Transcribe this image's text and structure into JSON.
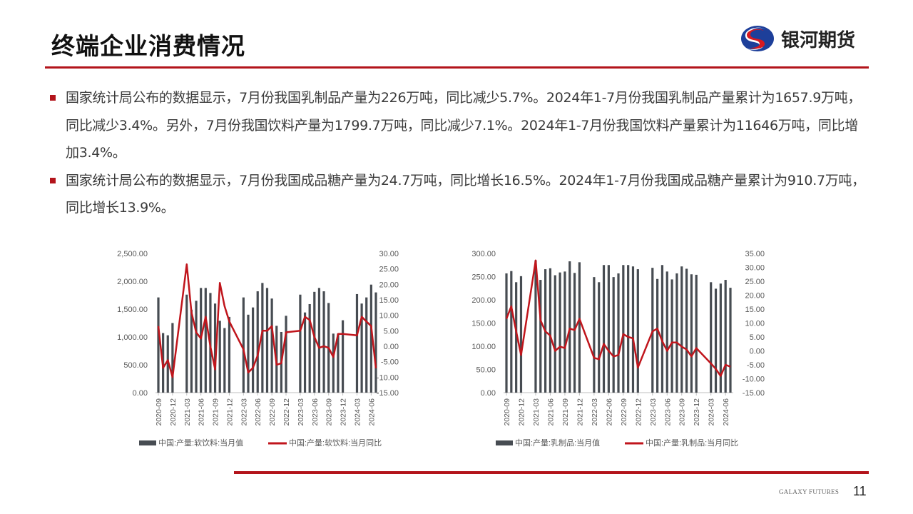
{
  "header": {
    "title": "终端企业消费情况",
    "logo_text": "银河期货"
  },
  "bullets": [
    "国家统计局公布的数据显示，7月份我国乳制品产量为226万吨，同比减少5.7%。2024年1-7月份我国乳制品产量累计为1657.9万吨，同比减少3.4%。另外，7月份我国饮料产量为1799.7万吨，同比减少7.1%。2024年1-7月份我国饮料产量累计为11646万吨，同比增加3.4%。",
    "国家统计局公布的数据显示，7月份我国成品糖产量为24.7万吨，同比增长16.5%。2024年1-7月份我国成品糖产量累计为910.7万吨，同比增长13.9%。"
  ],
  "colors": {
    "accent": "#b3141b",
    "bar": "#474c52",
    "line": "#c0151c"
  },
  "chart_data": [
    {
      "type": "bar+line",
      "months": [
        "2020-09",
        "2020-10",
        "2020-11",
        "2020-12",
        "2021-01",
        "2021-02",
        "2021-03",
        "2021-04",
        "2021-05",
        "2021-06",
        "2021-07",
        "2021-08",
        "2021-09",
        "2021-10",
        "2021-11",
        "2021-12",
        "2022-01",
        "2022-02",
        "2022-03",
        "2022-04",
        "2022-05",
        "2022-06",
        "2022-07",
        "2022-08",
        "2022-09",
        "2022-10",
        "2022-11",
        "2022-12",
        "2023-01",
        "2023-02",
        "2023-03",
        "2023-04",
        "2023-05",
        "2023-06",
        "2023-07",
        "2023-08",
        "2023-09",
        "2023-10",
        "2023-11",
        "2023-12",
        "2024-01",
        "2024-02",
        "2024-03",
        "2024-04",
        "2024-05",
        "2024-06",
        "2024-07"
      ],
      "xticks": [
        "2020-09",
        "2020-12",
        "2021-03",
        "2021-06",
        "2021-09",
        "2021-12",
        "2022-03",
        "2022-06",
        "2022-09",
        "2022-12",
        "2023-03",
        "2023-06",
        "2023-09",
        "2023-12",
        "2024-03",
        "2024-06"
      ],
      "series": [
        {
          "name": "中国:产量:软饮料:当月值",
          "axis": "left",
          "kind": "bar",
          "values": [
            1710,
            1070,
            1030,
            1250,
            null,
            null,
            1760,
            1490,
            1650,
            1880,
            1880,
            1790,
            1600,
            1290,
            1160,
            1360,
            null,
            null,
            1710,
            1400,
            1530,
            1820,
            1970,
            1880,
            1690,
            1200,
            1090,
            1380,
            null,
            null,
            1760,
            1440,
            1590,
            1810,
            1880,
            1820,
            1610,
            1060,
            1060,
            1300,
            null,
            null,
            1770,
            1600,
            1710,
            1940,
            1800
          ]
        },
        {
          "name": "中国:产量:软饮料:当月同比",
          "axis": "right",
          "kind": "line",
          "values": [
            6.5,
            -7,
            -4.5,
            -10,
            null,
            null,
            26.5,
            11,
            4.5,
            2.5,
            9.5,
            0,
            -7.5,
            20.5,
            13,
            8,
            null,
            null,
            -1,
            -8.5,
            -7,
            -3,
            5,
            5,
            6.5,
            -6,
            -5.5,
            4.5,
            null,
            null,
            5,
            9.5,
            8.5,
            3,
            -0.5,
            0,
            -0.5,
            -3.5,
            4,
            4,
            null,
            null,
            3.5,
            9.5,
            8,
            6.5,
            -7.1
          ]
        }
      ],
      "yleft": {
        "range": [
          0,
          2500
        ],
        "ticks": [
          "0.00",
          "500.00",
          "1,000.00",
          "1,500.00",
          "2,000.00",
          "2,500.00"
        ]
      },
      "yright": {
        "range": [
          -15,
          30
        ],
        "ticks": [
          "-15.00",
          "-10.00",
          "-5.00",
          "0.00",
          "5.00",
          "10.00",
          "15.00",
          "20.00",
          "25.00",
          "30.00"
        ]
      },
      "legend": "bottom"
    },
    {
      "type": "bar+line",
      "months": [
        "2020-09",
        "2020-10",
        "2020-11",
        "2020-12",
        "2021-01",
        "2021-02",
        "2021-03",
        "2021-04",
        "2021-05",
        "2021-06",
        "2021-07",
        "2021-08",
        "2021-09",
        "2021-10",
        "2021-11",
        "2021-12",
        "2022-01",
        "2022-02",
        "2022-03",
        "2022-04",
        "2022-05",
        "2022-06",
        "2022-07",
        "2022-08",
        "2022-09",
        "2022-10",
        "2022-11",
        "2022-12",
        "2023-01",
        "2023-02",
        "2023-03",
        "2023-04",
        "2023-05",
        "2023-06",
        "2023-07",
        "2023-08",
        "2023-09",
        "2023-10",
        "2023-11",
        "2023-12",
        "2024-01",
        "2024-02",
        "2024-03",
        "2024-04",
        "2024-05",
        "2024-06",
        "2024-07"
      ],
      "xticks": [
        "2020-09",
        "2020-12",
        "2021-03",
        "2021-06",
        "2021-09",
        "2021-12",
        "2022-03",
        "2022-06",
        "2022-09",
        "2022-12",
        "2023-03",
        "2023-06",
        "2023-09",
        "2023-12",
        "2024-03",
        "2024-06"
      ],
      "series": [
        {
          "name": "中国:产量:乳制品:当月值",
          "axis": "left",
          "kind": "bar",
          "values": [
            257,
            262,
            238,
            251,
            null,
            null,
            285,
            243,
            266,
            268,
            253,
            259,
            261,
            283,
            258,
            281,
            null,
            null,
            249,
            238,
            275,
            275,
            249,
            257,
            275,
            275,
            272,
            266,
            null,
            null,
            269,
            245,
            275,
            261,
            244,
            257,
            272,
            267,
            255,
            254,
            null,
            null,
            238,
            224,
            235,
            243,
            226
          ]
        },
        {
          "name": "中国:产量:乳制品:当月同比",
          "axis": "right",
          "kind": "line",
          "values": [
            11.5,
            16,
            7,
            -1.5,
            null,
            null,
            32.5,
            11,
            7,
            5.5,
            0,
            1.5,
            1,
            8,
            7.5,
            11.5,
            null,
            null,
            -2.5,
            -3,
            2.5,
            0,
            -2,
            -1.5,
            6,
            5,
            4.5,
            -6,
            null,
            null,
            7,
            8,
            3.5,
            0,
            3,
            3,
            1.5,
            0.5,
            -2,
            1,
            null,
            null,
            -4.5,
            -6.5,
            -9,
            -5,
            -5.7
          ]
        }
      ],
      "yleft": {
        "range": [
          0,
          300
        ],
        "ticks": [
          "0.00",
          "50.00",
          "100.00",
          "150.00",
          "200.00",
          "250.00",
          "300.00"
        ]
      },
      "yright": {
        "range": [
          -15,
          35
        ],
        "ticks": [
          "-15.00",
          "-10.00",
          "-5.00",
          "0.00",
          "5.00",
          "10.00",
          "15.00",
          "20.00",
          "25.00",
          "30.00",
          "35.00"
        ]
      },
      "legend": "bottom"
    }
  ],
  "footer": {
    "brand": "GALAXY FUTURES",
    "page": "11"
  }
}
